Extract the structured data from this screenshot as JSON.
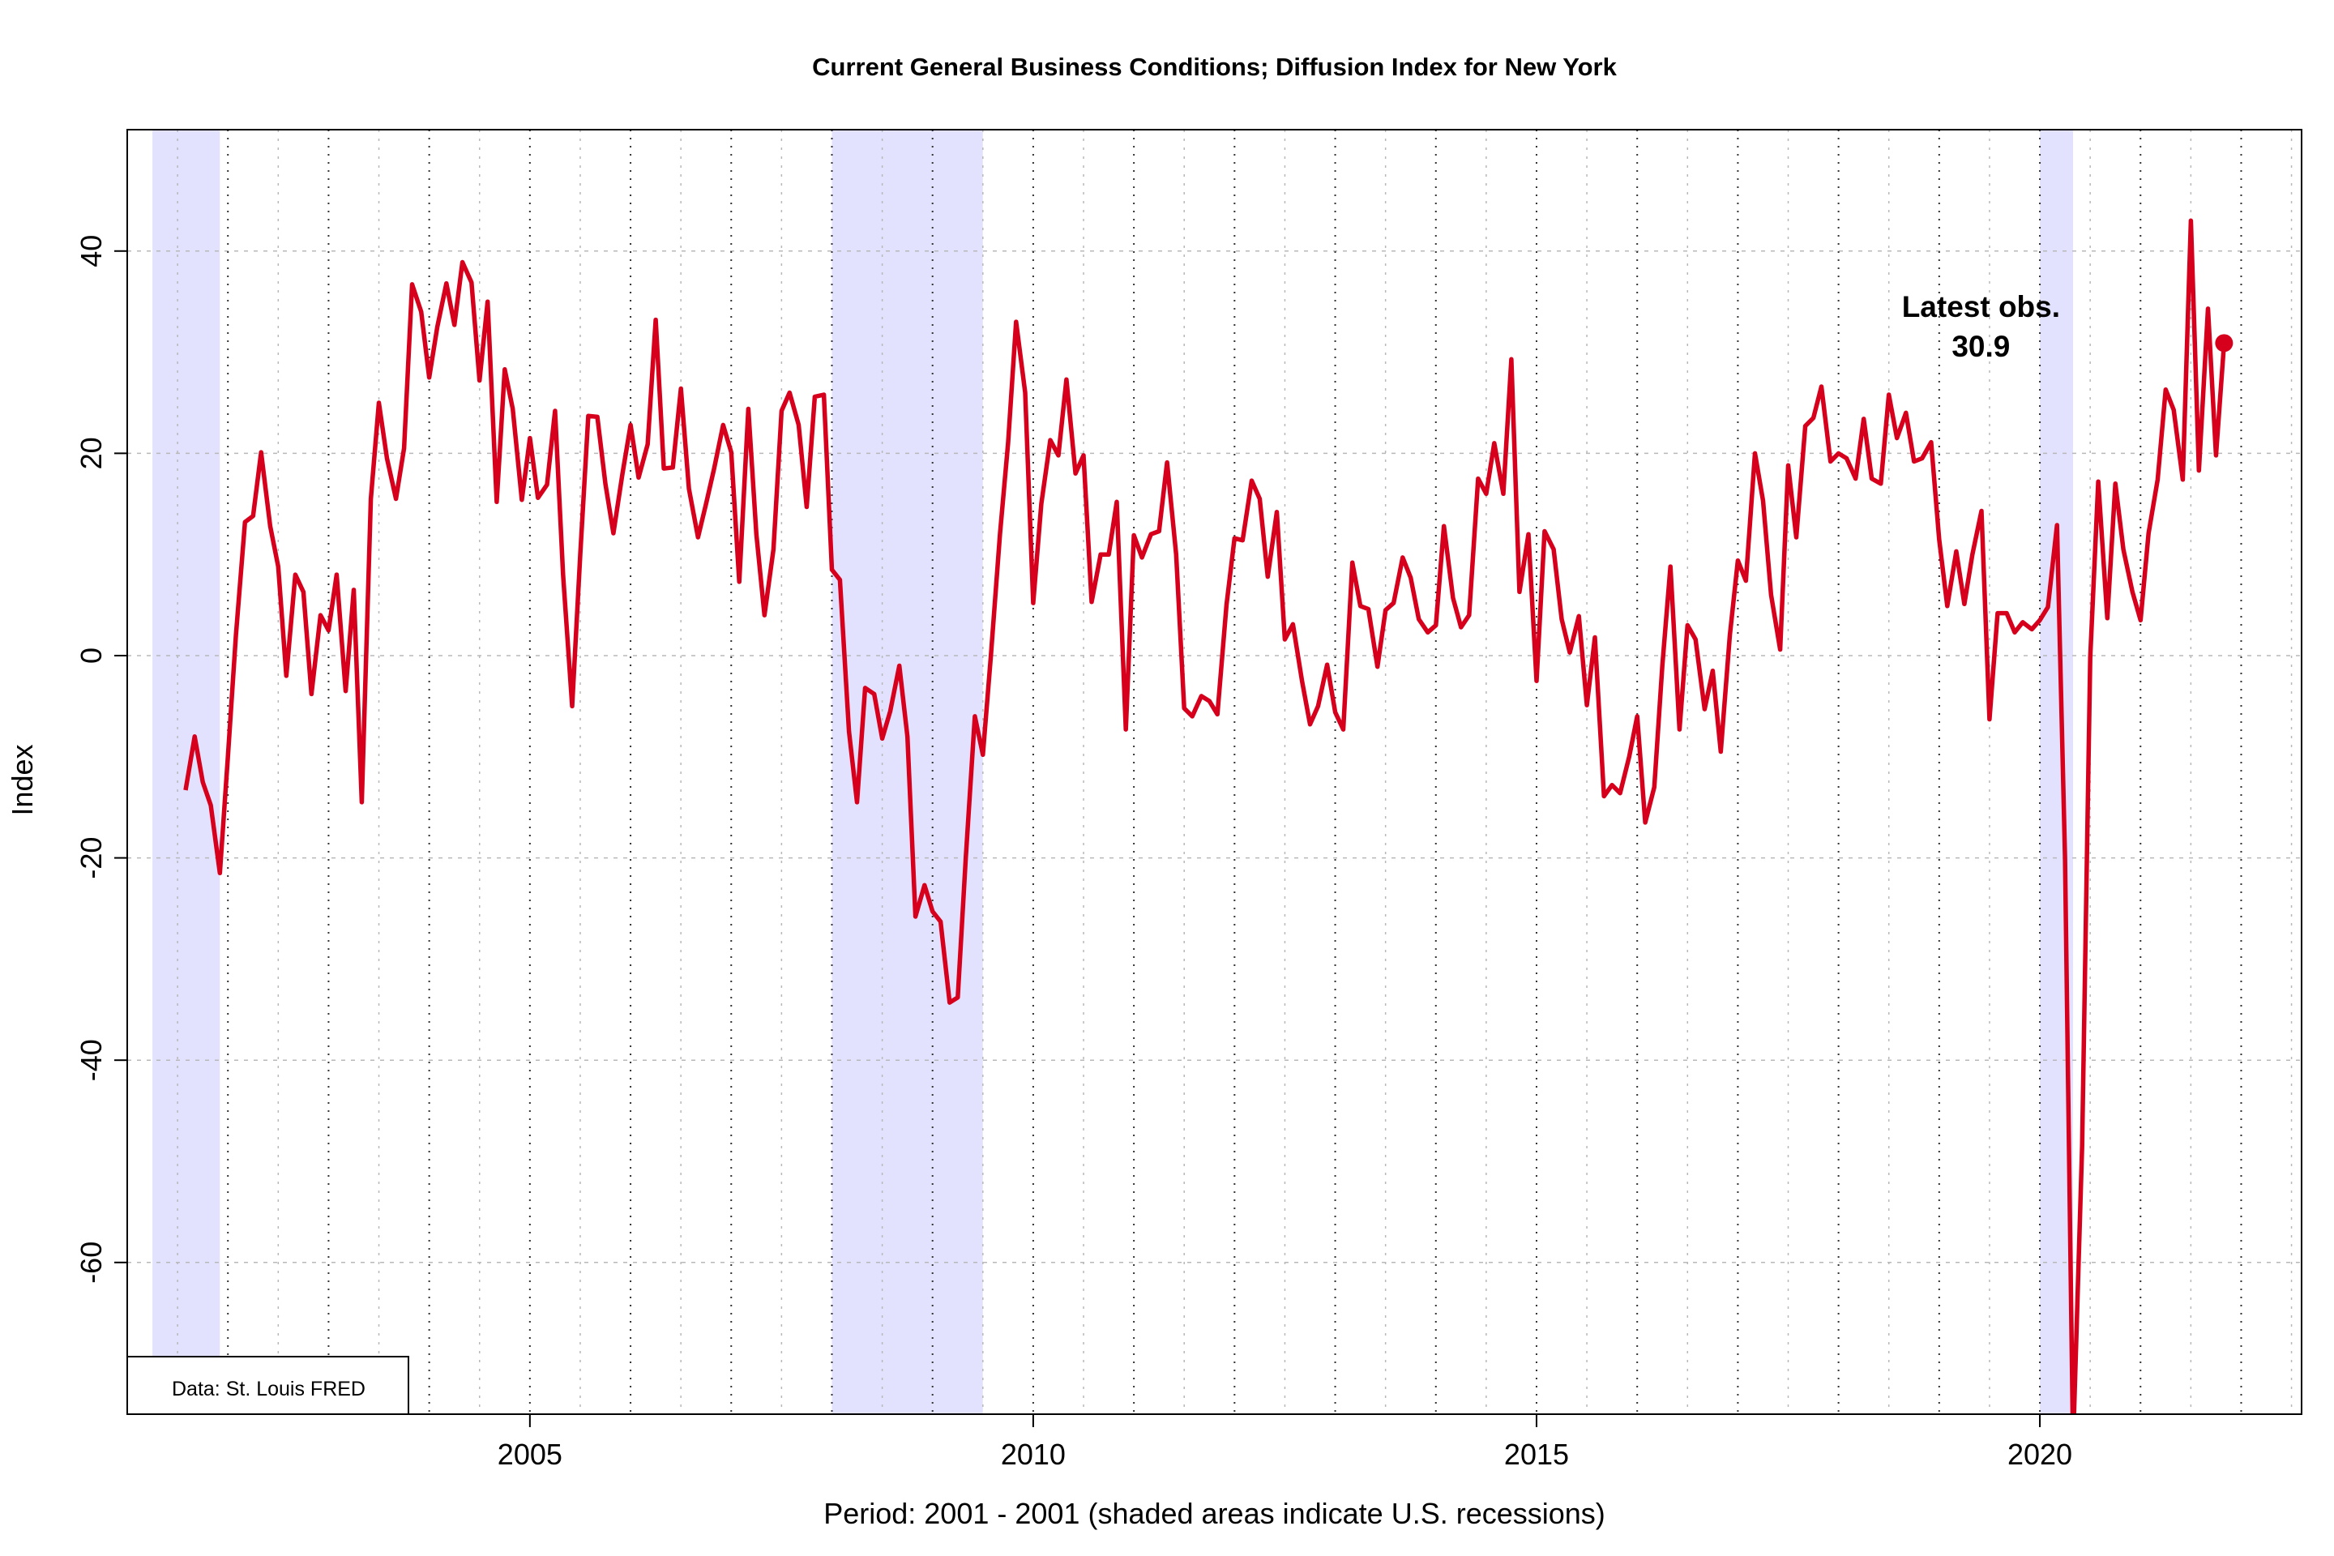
{
  "chart_data": {
    "type": "line",
    "title": "Current General Business Conditions; Diffusion Index for New York",
    "xlabel": "Period: 2001 - 2001 (shaded areas indicate U.S. recessions)",
    "ylabel": "Index",
    "xlim": [
      2001.0,
      2022.6
    ],
    "ylim": [
      -75,
      52
    ],
    "x_ticks": [
      {
        "value": 2005,
        "label": "2005"
      },
      {
        "value": 2010,
        "label": "2010"
      },
      {
        "value": 2015,
        "label": "2015"
      },
      {
        "value": 2020,
        "label": "2020"
      }
    ],
    "y_ticks": [
      {
        "value": 40,
        "label": "40"
      },
      {
        "value": 20,
        "label": "20"
      },
      {
        "value": 0,
        "label": "0"
      },
      {
        "value": -20,
        "label": "-20"
      },
      {
        "value": -40,
        "label": "-40"
      },
      {
        "value": -60,
        "label": "-60"
      }
    ],
    "grid": true,
    "recessions": [
      {
        "start": 2001.25,
        "end": 2001.92
      },
      {
        "start": 2008.0,
        "end": 2009.5
      },
      {
        "start": 2020.0,
        "end": 2020.33
      }
    ],
    "series": [
      {
        "color": "#d6001c",
        "points": [
          [
            2001.58,
            -13.3
          ],
          [
            2001.67,
            -8
          ],
          [
            2001.75,
            -12.5
          ],
          [
            2001.83,
            -14.8
          ],
          [
            2001.92,
            -21.5
          ],
          [
            2002.0,
            -10
          ],
          [
            2002.08,
            2
          ],
          [
            2002.17,
            13.2
          ],
          [
            2002.25,
            13.8
          ],
          [
            2002.33,
            20.1
          ],
          [
            2002.42,
            12.8
          ],
          [
            2002.5,
            8.8
          ],
          [
            2002.58,
            -2
          ],
          [
            2002.67,
            8
          ],
          [
            2002.75,
            6.3
          ],
          [
            2002.83,
            -3.8
          ],
          [
            2002.92,
            4
          ],
          [
            2003.0,
            2.5
          ],
          [
            2003.08,
            8
          ],
          [
            2003.17,
            -3.5
          ],
          [
            2003.25,
            6.5
          ],
          [
            2003.33,
            -14.5
          ],
          [
            2003.42,
            15.5
          ],
          [
            2003.5,
            25
          ],
          [
            2003.58,
            19.5
          ],
          [
            2003.67,
            15.5
          ],
          [
            2003.75,
            20.5
          ],
          [
            2003.83,
            36.7
          ],
          [
            2003.92,
            34
          ],
          [
            2004.0,
            27.5
          ],
          [
            2004.08,
            32.5
          ],
          [
            2004.17,
            36.8
          ],
          [
            2004.25,
            32.7
          ],
          [
            2004.33,
            38.9
          ],
          [
            2004.42,
            36.9
          ],
          [
            2004.5,
            27.2
          ],
          [
            2004.58,
            35
          ],
          [
            2004.67,
            15.2
          ],
          [
            2004.75,
            28.3
          ],
          [
            2004.83,
            24.4
          ],
          [
            2004.92,
            15.4
          ],
          [
            2005.0,
            21.5
          ],
          [
            2005.08,
            15.6
          ],
          [
            2005.17,
            16.9
          ],
          [
            2005.25,
            24.2
          ],
          [
            2005.33,
            8
          ],
          [
            2005.42,
            -5
          ],
          [
            2005.5,
            10
          ],
          [
            2005.58,
            23.7
          ],
          [
            2005.67,
            23.6
          ],
          [
            2005.75,
            17
          ],
          [
            2005.83,
            12.1
          ],
          [
            2005.92,
            18
          ],
          [
            2006.0,
            22.8
          ],
          [
            2006.08,
            17.6
          ],
          [
            2006.17,
            20.9
          ],
          [
            2006.25,
            33.2
          ],
          [
            2006.33,
            18.5
          ],
          [
            2006.42,
            18.6
          ],
          [
            2006.5,
            26.4
          ],
          [
            2006.58,
            16.5
          ],
          [
            2006.67,
            11.7
          ],
          [
            2006.75,
            15
          ],
          [
            2006.83,
            18.5
          ],
          [
            2006.92,
            22.8
          ],
          [
            2007.0,
            20.1
          ],
          [
            2007.08,
            7.3
          ],
          [
            2007.17,
            24.4
          ],
          [
            2007.25,
            12
          ],
          [
            2007.33,
            4
          ],
          [
            2007.42,
            10.5
          ],
          [
            2007.5,
            24.2
          ],
          [
            2007.58,
            26
          ],
          [
            2007.67,
            22.8
          ],
          [
            2007.75,
            14.7
          ],
          [
            2007.83,
            25.6
          ],
          [
            2007.92,
            25.8
          ],
          [
            2008.0,
            8.5
          ],
          [
            2008.08,
            7.5
          ],
          [
            2008.17,
            -7.5
          ],
          [
            2008.25,
            -14.5
          ],
          [
            2008.33,
            -3.2
          ],
          [
            2008.42,
            -3.8
          ],
          [
            2008.5,
            -8.2
          ],
          [
            2008.58,
            -5.5
          ],
          [
            2008.67,
            -1
          ],
          [
            2008.75,
            -8
          ],
          [
            2008.83,
            -25.8
          ],
          [
            2008.92,
            -22.7
          ],
          [
            2009.0,
            -25.3
          ],
          [
            2009.08,
            -26.3
          ],
          [
            2009.17,
            -34.3
          ],
          [
            2009.25,
            -33.8
          ],
          [
            2009.33,
            -20
          ],
          [
            2009.42,
            -6
          ],
          [
            2009.5,
            -9.8
          ],
          [
            2009.58,
            0
          ],
          [
            2009.67,
            12
          ],
          [
            2009.75,
            21
          ],
          [
            2009.83,
            33
          ],
          [
            2009.92,
            26
          ],
          [
            2010.0,
            5.2
          ],
          [
            2010.08,
            15
          ],
          [
            2010.17,
            21.3
          ],
          [
            2010.25,
            19.8
          ],
          [
            2010.33,
            27.3
          ],
          [
            2010.42,
            18
          ],
          [
            2010.5,
            19.8
          ],
          [
            2010.58,
            5.3
          ],
          [
            2010.67,
            10
          ],
          [
            2010.75,
            10
          ],
          [
            2010.83,
            15.2
          ],
          [
            2010.92,
            -7.3
          ],
          [
            2011.0,
            11.9
          ],
          [
            2011.08,
            9.7
          ],
          [
            2011.17,
            12
          ],
          [
            2011.25,
            12.3
          ],
          [
            2011.33,
            19.1
          ],
          [
            2011.42,
            10
          ],
          [
            2011.5,
            -5.2
          ],
          [
            2011.58,
            -6
          ],
          [
            2011.67,
            -4
          ],
          [
            2011.75,
            -4.5
          ],
          [
            2011.83,
            -5.8
          ],
          [
            2011.92,
            5
          ],
          [
            2012.0,
            11.6
          ],
          [
            2012.08,
            11.4
          ],
          [
            2012.17,
            17.3
          ],
          [
            2012.25,
            15.5
          ],
          [
            2012.33,
            7.8
          ],
          [
            2012.42,
            14.2
          ],
          [
            2012.5,
            1.6
          ],
          [
            2012.58,
            3.1
          ],
          [
            2012.67,
            -2.5
          ],
          [
            2012.75,
            -6.8
          ],
          [
            2012.83,
            -5
          ],
          [
            2012.92,
            -0.9
          ],
          [
            2013.0,
            -5.6
          ],
          [
            2013.08,
            -7.3
          ],
          [
            2013.17,
            9.2
          ],
          [
            2013.25,
            4.9
          ],
          [
            2013.33,
            4.6
          ],
          [
            2013.42,
            -1.1
          ],
          [
            2013.5,
            4.5
          ],
          [
            2013.58,
            5.2
          ],
          [
            2013.67,
            9.7
          ],
          [
            2013.75,
            7.7
          ],
          [
            2013.83,
            3.6
          ],
          [
            2013.92,
            2.3
          ],
          [
            2014.0,
            3
          ],
          [
            2014.08,
            12.8
          ],
          [
            2014.17,
            5.7
          ],
          [
            2014.25,
            2.8
          ],
          [
            2014.33,
            4
          ],
          [
            2014.42,
            17.5
          ],
          [
            2014.5,
            16
          ],
          [
            2014.58,
            21
          ],
          [
            2014.67,
            16
          ],
          [
            2014.75,
            29.3
          ],
          [
            2014.83,
            6.3
          ],
          [
            2014.92,
            12
          ],
          [
            2015.0,
            -2.5
          ],
          [
            2015.08,
            12.3
          ],
          [
            2015.17,
            10.5
          ],
          [
            2015.25,
            3.6
          ],
          [
            2015.33,
            0.3
          ],
          [
            2015.42,
            3.9
          ],
          [
            2015.5,
            -4.9
          ],
          [
            2015.58,
            1.8
          ],
          [
            2015.67,
            -13.9
          ],
          [
            2015.75,
            -12.8
          ],
          [
            2015.83,
            -13.6
          ],
          [
            2015.92,
            -10
          ],
          [
            2016.0,
            -6
          ],
          [
            2016.08,
            -16.5
          ],
          [
            2016.17,
            -13
          ],
          [
            2016.25,
            -1
          ],
          [
            2016.33,
            8.8
          ],
          [
            2016.42,
            -7.3
          ],
          [
            2016.5,
            3
          ],
          [
            2016.58,
            1.6
          ],
          [
            2016.67,
            -5.3
          ],
          [
            2016.75,
            -1.5
          ],
          [
            2016.83,
            -9.5
          ],
          [
            2016.92,
            2
          ],
          [
            2017.0,
            9.4
          ],
          [
            2017.08,
            7.4
          ],
          [
            2017.17,
            20
          ],
          [
            2017.25,
            15.3
          ],
          [
            2017.33,
            6
          ],
          [
            2017.42,
            0.6
          ],
          [
            2017.5,
            18.8
          ],
          [
            2017.58,
            11.7
          ],
          [
            2017.67,
            22.7
          ],
          [
            2017.75,
            23.5
          ],
          [
            2017.83,
            26.6
          ],
          [
            2017.92,
            19.2
          ],
          [
            2018.0,
            20
          ],
          [
            2018.08,
            19.5
          ],
          [
            2018.17,
            17.5
          ],
          [
            2018.25,
            23.4
          ],
          [
            2018.33,
            17.5
          ],
          [
            2018.42,
            17
          ],
          [
            2018.5,
            25.8
          ],
          [
            2018.58,
            21.5
          ],
          [
            2018.67,
            24
          ],
          [
            2018.75,
            19.2
          ],
          [
            2018.83,
            19.5
          ],
          [
            2018.92,
            21.1
          ],
          [
            2019.0,
            11.5
          ],
          [
            2019.08,
            4.9
          ],
          [
            2019.17,
            10.3
          ],
          [
            2019.25,
            5.1
          ],
          [
            2019.33,
            10
          ],
          [
            2019.42,
            14.3
          ],
          [
            2019.5,
            -6.3
          ],
          [
            2019.58,
            4.2
          ],
          [
            2019.67,
            4.2
          ],
          [
            2019.75,
            2.3
          ],
          [
            2019.83,
            3.3
          ],
          [
            2019.92,
            2.6
          ],
          [
            2020.0,
            3.5
          ],
          [
            2020.08,
            4.8
          ],
          [
            2020.17,
            12.9
          ],
          [
            2020.25,
            -20
          ],
          [
            2020.33,
            -78.2
          ],
          [
            2020.42,
            -48.5
          ],
          [
            2020.5,
            -0.2
          ],
          [
            2020.58,
            17.2
          ],
          [
            2020.67,
            3.7
          ],
          [
            2020.75,
            17
          ],
          [
            2020.83,
            10.5
          ],
          [
            2020.92,
            6.3
          ],
          [
            2021.0,
            3.5
          ],
          [
            2021.08,
            12.1
          ],
          [
            2021.17,
            17.4
          ],
          [
            2021.25,
            26.3
          ],
          [
            2021.33,
            24.3
          ],
          [
            2021.42,
            17.4
          ],
          [
            2021.5,
            43
          ],
          [
            2021.58,
            18.3
          ],
          [
            2021.67,
            34.3
          ],
          [
            2021.75,
            19.8
          ],
          [
            2021.83,
            30.9
          ]
        ]
      }
    ],
    "latest": {
      "x": 2021.83,
      "y": 30.9,
      "label": "Latest obs.",
      "value_label": "30.9"
    },
    "source": "Data: St. Louis FRED"
  },
  "colors": {
    "line": "#d6001c",
    "recession": "#e2e2fe",
    "grid": "#b8b8b8"
  }
}
